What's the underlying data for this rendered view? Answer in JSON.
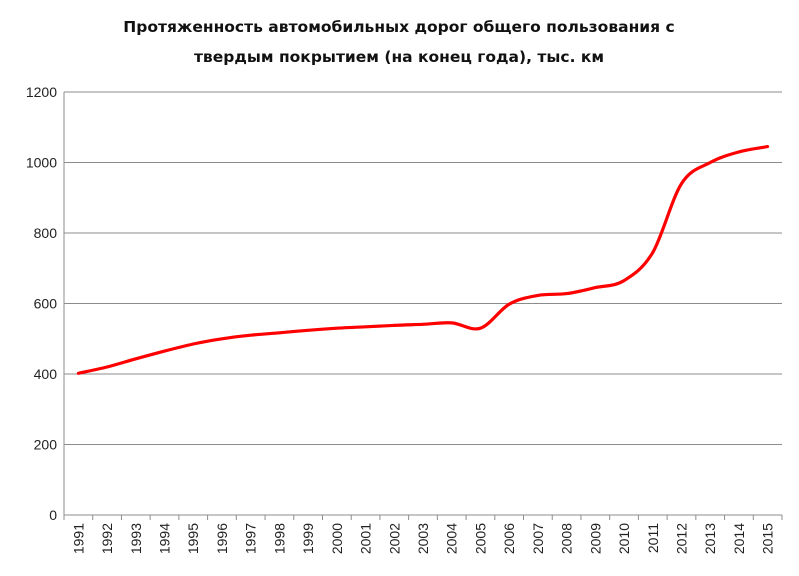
{
  "chart_data": {
    "type": "line",
    "title_lines": [
      "Протяженность автомобильных  дорог общего пользования с",
      "твердым покрытием (на конец года), тыс. км"
    ],
    "x": [
      "1991",
      "1992",
      "1993",
      "1994",
      "1995",
      "1996",
      "1997",
      "1998",
      "1999",
      "2000",
      "2001",
      "2002",
      "2003",
      "2004",
      "2005",
      "2006",
      "2007",
      "2008",
      "2009",
      "2010",
      "2011",
      "2012",
      "2013",
      "2014",
      "2015"
    ],
    "series": [
      {
        "values": [
          402,
          420,
          443,
          465,
          485,
          500,
          510,
          517,
          524,
          530,
          534,
          538,
          541,
          545,
          530,
          598,
          623,
          628,
          645,
          665,
          745,
          940,
          1000,
          1030,
          1045
        ],
        "color": "#ff0000"
      }
    ],
    "y_ticks": [
      "0",
      "200",
      "400",
      "600",
      "800",
      "1000",
      "1200"
    ],
    "ylim": [
      0,
      1200
    ],
    "grid": true,
    "legend": "none",
    "colors": {
      "gridline": "#8c8c8c",
      "axis": "#8c8c8c",
      "line": "#ff0000"
    }
  }
}
